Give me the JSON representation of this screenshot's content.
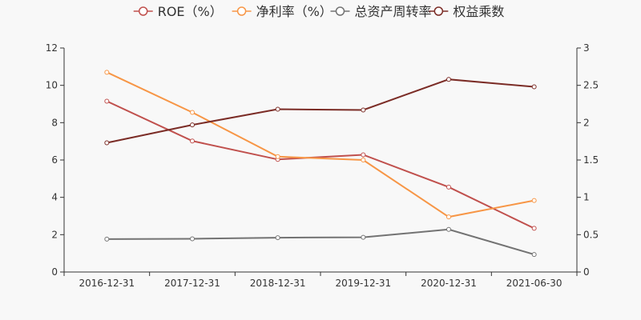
{
  "chart_data": {
    "type": "line",
    "categories": [
      "2016-12-31",
      "2017-12-31",
      "2018-12-31",
      "2019-12-31",
      "2020-12-31",
      "2021-06-30"
    ],
    "y_left": {
      "ylim": [
        0,
        12
      ],
      "ticks": [
        "0",
        "2",
        "4",
        "6",
        "8",
        "10",
        "12"
      ]
    },
    "y_right": {
      "ylim": [
        0,
        3
      ],
      "ticks": [
        "0",
        "0.5",
        "1",
        "1.5",
        "2",
        "2.5",
        "3"
      ]
    },
    "grid": false,
    "legend_position": "top-center",
    "series": [
      {
        "name": "ROE（%）",
        "axis": "left",
        "color": "#c0504d",
        "values": [
          9.15,
          7.02,
          6.03,
          6.28,
          4.55,
          2.34
        ]
      },
      {
        "name": "净利率（%）",
        "axis": "left",
        "color": "#f79646",
        "values": [
          10.7,
          8.55,
          6.18,
          6.0,
          2.95,
          3.83
        ]
      },
      {
        "name": "总资产周转率",
        "axis": "right",
        "color": "#737373",
        "values": [
          0.44,
          0.445,
          0.46,
          0.465,
          0.57,
          0.235
        ]
      },
      {
        "name": "权益乘数",
        "axis": "right",
        "color": "#7b2c26",
        "values": [
          1.73,
          1.97,
          2.18,
          2.17,
          2.58,
          2.48
        ]
      }
    ]
  }
}
